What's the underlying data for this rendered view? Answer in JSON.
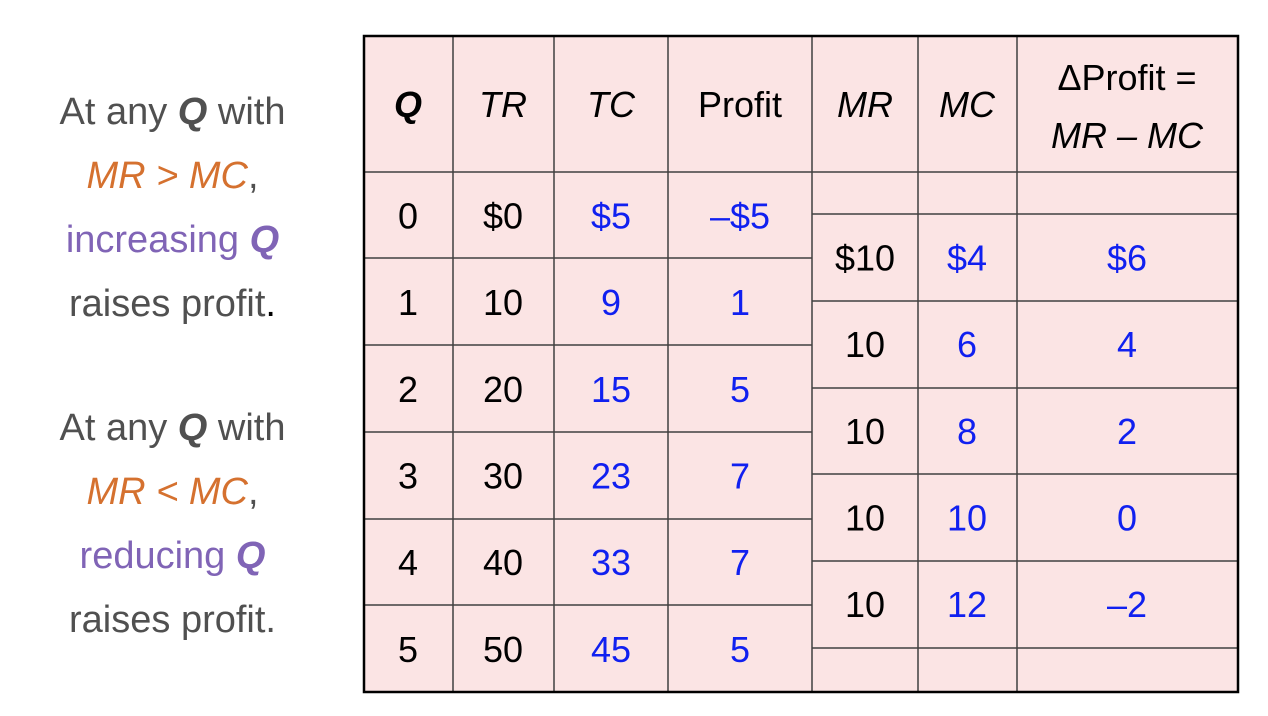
{
  "left_text": {
    "block1": {
      "l1_a": "At any ",
      "l1_q": "Q",
      "l1_b": " with",
      "l2_mr": "MR > MC",
      "l2_comma": ",",
      "l3_a": "increasing ",
      "l3_q": "Q",
      "l4_a": "raises profit",
      "l4_dot": "."
    },
    "block2": {
      "l1_a": "At any ",
      "l1_q": "Q",
      "l1_b": " with",
      "l2_mr": "MR < MC",
      "l2_comma": ",",
      "l3_a": "reducing ",
      "l3_q": "Q",
      "l4_a": "raises profit."
    }
  },
  "table": {
    "headers": {
      "q": "Q",
      "tr": "TR",
      "tc": "TC",
      "profit": "Profit",
      "mr": "MR",
      "mc": "MC",
      "dprofit_line1": "ΔProfit =",
      "dprofit_line2": "MR – MC"
    },
    "rows": [
      {
        "q": "0",
        "tr": "$0",
        "tc": "$5",
        "profit": "–$5"
      },
      {
        "q": "1",
        "tr": "10",
        "tc": "9",
        "profit": "1"
      },
      {
        "q": "2",
        "tr": "20",
        "tc": "15",
        "profit": "5"
      },
      {
        "q": "3",
        "tr": "30",
        "tc": "23",
        "profit": "7"
      },
      {
        "q": "4",
        "tr": "40",
        "tc": "33",
        "profit": "7"
      },
      {
        "q": "5",
        "tr": "50",
        "tc": "45",
        "profit": "5"
      }
    ],
    "marginal_rows": [
      {
        "mr": "$10",
        "mc": "$4",
        "dprofit": "$6"
      },
      {
        "mr": "10",
        "mc": "6",
        "dprofit": "4"
      },
      {
        "mr": "10",
        "mc": "8",
        "dprofit": "2"
      },
      {
        "mr": "10",
        "mc": "10",
        "dprofit": "0"
      },
      {
        "mr": "10",
        "mc": "12",
        "dprofit": "–2"
      }
    ]
  },
  "colors": {
    "cell_background": "#fbe4e4",
    "computed_value": "#1020f0",
    "mr_mc_highlight": "#d5712f",
    "q_change_highlight": "#8064b6",
    "explanation_text": "#505050"
  }
}
